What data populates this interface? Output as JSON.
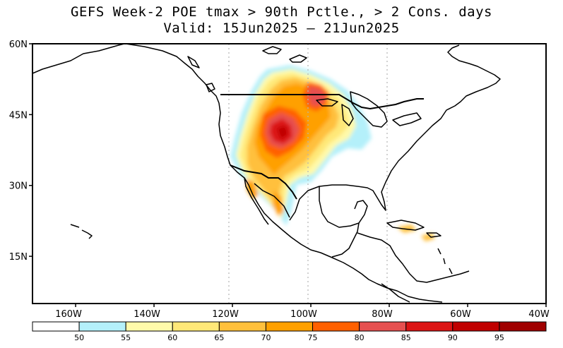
{
  "title": {
    "line1": "GEFS Week-2 POE tmax > 90th Pctle., > 2 Cons. days",
    "line2": "Valid: 15Jun2025 – 21Jun2025"
  },
  "map": {
    "lat_ticks": [
      {
        "label": "60N",
        "lat": 60
      },
      {
        "label": "45N",
        "lat": 45
      },
      {
        "label": "30N",
        "lat": 30
      },
      {
        "label": "15N",
        "lat": 15
      }
    ],
    "lon_ticks": [
      {
        "label": "160W",
        "lon": -160
      },
      {
        "label": "140W",
        "lon": -140
      },
      {
        "label": "120W",
        "lon": -120
      },
      {
        "label": "100W",
        "lon": -100
      },
      {
        "label": "80W",
        "lon": -80
      },
      {
        "label": "60W",
        "lon": -60
      },
      {
        "label": "40W",
        "lon": -40
      }
    ],
    "extent": {
      "lon_min": -171,
      "lon_max": -40,
      "lat_min": 5,
      "lat_max": 60
    },
    "gridlines": "dotted at 120W, 100W, 80W"
  },
  "colorbar": {
    "labels": [
      "50",
      "55",
      "60",
      "65",
      "70",
      "75",
      "80",
      "85",
      "90",
      "95"
    ],
    "colors": [
      "#ffffff",
      "#b4f0fa",
      "#fffaaa",
      "#ffe878",
      "#ffc03c",
      "#ffa000",
      "#ff6000",
      "#e65050",
      "#dc1414",
      "#c00000",
      "#a00000"
    ]
  }
}
